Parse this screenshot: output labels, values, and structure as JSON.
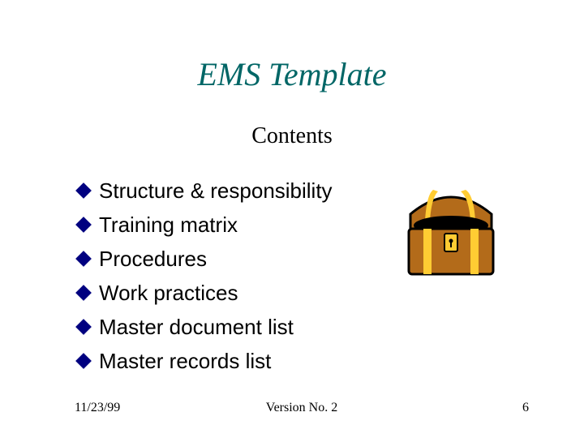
{
  "title": {
    "text": "EMS Template",
    "color": "#006666",
    "fontsize": 40,
    "font_family": "Times New Roman"
  },
  "subtitle": {
    "text": "Contents",
    "color": "#000000",
    "fontsize": 28,
    "font_family": "Times New Roman"
  },
  "bullets": {
    "marker_color": "#000080",
    "text_color": "#000000",
    "fontsize": 26,
    "line_height": 38,
    "items": [
      "Structure & responsibility",
      "Training matrix",
      "Procedures",
      "Work practices",
      "Master document list",
      "Master records list"
    ]
  },
  "clipart": {
    "type": "treasure-chest",
    "chest_body_color": "#b36b1a",
    "chest_band_color": "#ffcc33",
    "chest_outline_color": "#000000",
    "chest_interior_color": "#000000",
    "chest_lock_color": "#ffcc33"
  },
  "footer": {
    "date": "11/23/99",
    "version": "Version No. 2",
    "page": "6",
    "fontsize": 16,
    "color": "#000000"
  },
  "background_color": "#ffffff"
}
